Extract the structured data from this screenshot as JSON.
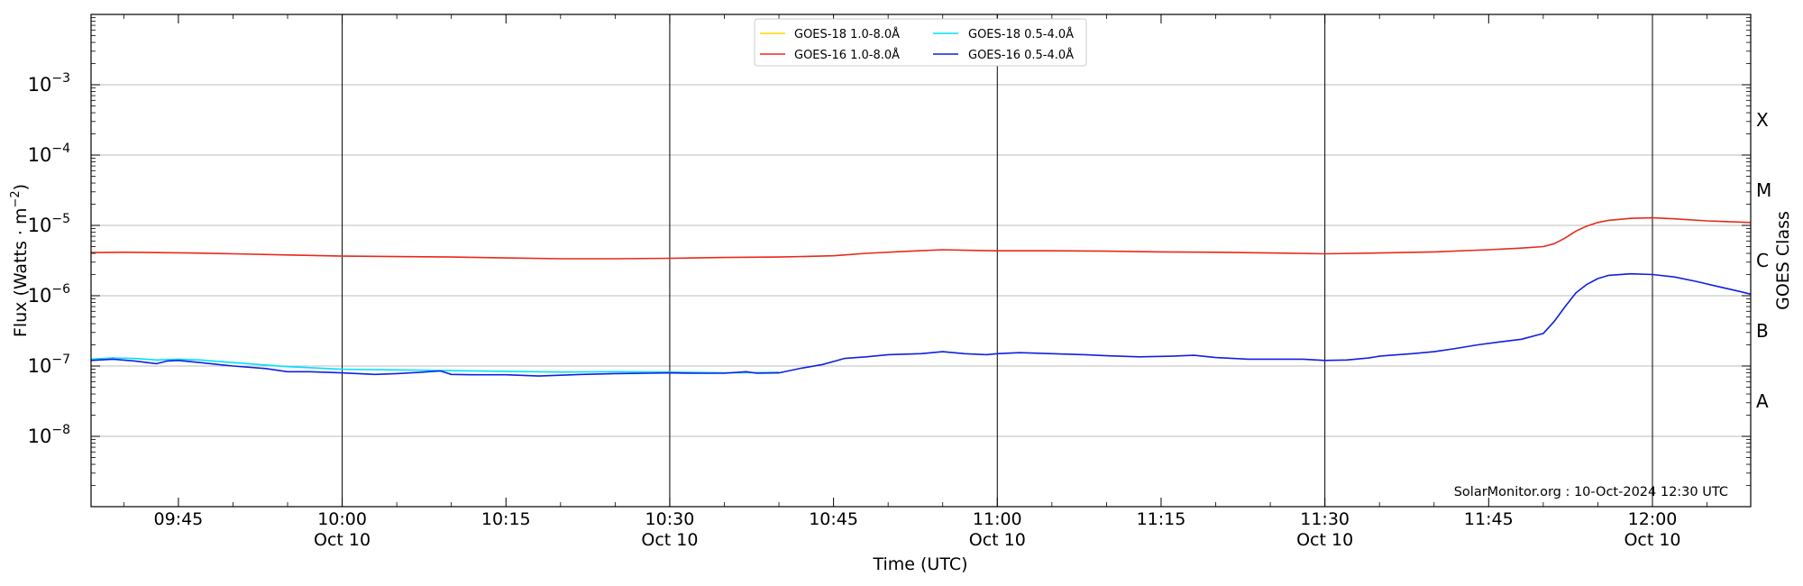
{
  "chart_data": {
    "type": "line",
    "ylabel": "Flux (Watts · m",
    "ylabel_exp": "−2",
    "ylabel_close": ")",
    "xlabel": "Time (UTC)",
    "right_label": "GOES Class",
    "scale_y": "log",
    "ylim": [
      1e-09,
      0.01
    ],
    "xlim": [
      "09:37",
      "12:09"
    ],
    "grid": "horizontal major ticks; vertical at half-hours",
    "legend_position": "top-center",
    "y_ticks": [
      {
        "base": "10",
        "exp": "−8",
        "value": 1e-08
      },
      {
        "base": "10",
        "exp": "−7",
        "value": 1e-07
      },
      {
        "base": "10",
        "exp": "−6",
        "value": 1e-06
      },
      {
        "base": "10",
        "exp": "−5",
        "value": 1e-05
      },
      {
        "base": "10",
        "exp": "−4",
        "value": 0.0001
      },
      {
        "base": "10",
        "exp": "−3",
        "value": 0.001
      }
    ],
    "x_ticks": [
      {
        "label": "09:45",
        "sub": "",
        "time": "09:45"
      },
      {
        "label": "10:00",
        "sub": "Oct 10",
        "time": "10:00"
      },
      {
        "label": "10:15",
        "sub": "",
        "time": "10:15"
      },
      {
        "label": "10:30",
        "sub": "Oct 10",
        "time": "10:30"
      },
      {
        "label": "10:45",
        "sub": "",
        "time": "10:45"
      },
      {
        "label": "11:00",
        "sub": "Oct 10",
        "time": "11:00"
      },
      {
        "label": "11:15",
        "sub": "",
        "time": "11:15"
      },
      {
        "label": "11:30",
        "sub": "Oct 10",
        "time": "11:30"
      },
      {
        "label": "11:45",
        "sub": "",
        "time": "11:45"
      },
      {
        "label": "12:00",
        "sub": "Oct 10",
        "time": "12:00"
      }
    ],
    "vlines": [
      "10:00",
      "10:30",
      "11:00",
      "11:30",
      "12:00"
    ],
    "goes_classes": [
      {
        "label": "A",
        "value": 3.16e-08
      },
      {
        "label": "B",
        "value": 3.16e-07
      },
      {
        "label": "C",
        "value": 3.16e-06
      },
      {
        "label": "M",
        "value": 3.16e-05
      },
      {
        "label": "X",
        "value": 0.000316
      }
    ],
    "annotation": "SolarMonitor.org : 10-Oct-2024 12:30 UTC",
    "series": [
      {
        "name": "GOES-18 1.0-8.0Å",
        "color": "#ffd700",
        "x": [],
        "values": []
      },
      {
        "name": "GOES-16 1.0-8.0Å",
        "color": "#e8291c",
        "x": [
          "09:37",
          "09:40",
          "09:43",
          "09:46",
          "09:50",
          "09:55",
          "10:00",
          "10:05",
          "10:10",
          "10:15",
          "10:20",
          "10:25",
          "10:30",
          "10:35",
          "10:40",
          "10:45",
          "10:48",
          "10:52",
          "10:55",
          "10:58",
          "11:00",
          "11:05",
          "11:10",
          "11:15",
          "11:20",
          "11:25",
          "11:30",
          "11:35",
          "11:40",
          "11:45",
          "11:48",
          "11:50",
          "11:51",
          "11:52",
          "11:53",
          "11:54",
          "11:55",
          "11:56",
          "11:58",
          "12:00",
          "12:02",
          "12:05",
          "12:09"
        ],
        "values": [
          4.1e-06,
          4.15e-06,
          4.1e-06,
          4.05e-06,
          3.95e-06,
          3.8e-06,
          3.65e-06,
          3.6e-06,
          3.55e-06,
          3.45e-06,
          3.35e-06,
          3.35e-06,
          3.4e-06,
          3.5e-06,
          3.55e-06,
          3.7e-06,
          4e-06,
          4.3e-06,
          4.5e-06,
          4.4e-06,
          4.35e-06,
          4.35e-06,
          4.3e-06,
          4.2e-06,
          4.15e-06,
          4.05e-06,
          3.95e-06,
          4.05e-06,
          4.2e-06,
          4.5e-06,
          4.75e-06,
          5e-06,
          5.5e-06,
          6.6e-06,
          8.3e-06,
          9.8e-06,
          1.1e-05,
          1.18e-05,
          1.26e-05,
          1.28e-05,
          1.24e-05,
          1.16e-05,
          1.1e-05
        ]
      },
      {
        "name": "GOES-18 0.5-4.0Å",
        "color": "#00e0ff",
        "x": [
          "09:37",
          "09:39",
          "09:41",
          "09:43",
          "09:45",
          "09:47",
          "09:50",
          "09:55",
          "10:00",
          "10:05",
          "10:10",
          "10:15",
          "10:20",
          "10:25",
          "10:30",
          "10:35",
          "10:40"
        ],
        "values": [
          1.25e-07,
          1.3e-07,
          1.28e-07,
          1.22e-07,
          1.25e-07,
          1.22e-07,
          1.12e-07,
          9.8e-08,
          9e-08,
          8.8e-08,
          8.6e-08,
          8.4e-08,
          8.2e-08,
          8.3e-08,
          8.2e-08,
          8e-08,
          8.1e-08
        ]
      },
      {
        "name": "GOES-16 0.5-4.0Å",
        "color": "#1020e0",
        "x": [
          "09:37",
          "09:39",
          "09:41",
          "09:43",
          "09:44",
          "09:45",
          "09:47",
          "09:50",
          "09:53",
          "09:55",
          "09:57",
          "10:00",
          "10:03",
          "10:05",
          "10:07",
          "10:09",
          "10:10",
          "10:12",
          "10:15",
          "10:18",
          "10:20",
          "10:22",
          "10:25",
          "10:28",
          "10:30",
          "10:32",
          "10:35",
          "10:37",
          "10:38",
          "10:40",
          "10:42",
          "10:44",
          "10:46",
          "10:48",
          "10:50",
          "10:53",
          "10:55",
          "10:57",
          "10:59",
          "11:00",
          "11:02",
          "11:05",
          "11:08",
          "11:10",
          "11:13",
          "11:16",
          "11:18",
          "11:20",
          "11:23",
          "11:26",
          "11:28",
          "11:30",
          "11:32",
          "11:34",
          "11:35",
          "11:36",
          "11:38",
          "11:40",
          "11:42",
          "11:44",
          "11:46",
          "11:48",
          "11:50",
          "11:51",
          "11:52",
          "11:53",
          "11:54",
          "11:55",
          "11:56",
          "11:58",
          "12:00",
          "12:02",
          "12:04",
          "12:06",
          "12:08",
          "12:09"
        ],
        "values": [
          1.2e-07,
          1.25e-07,
          1.18e-07,
          1.08e-07,
          1.18e-07,
          1.2e-07,
          1.12e-07,
          1e-07,
          9.2e-08,
          8.3e-08,
          8.3e-08,
          8e-08,
          7.6e-08,
          7.8e-08,
          8.1e-08,
          8.5e-08,
          7.6e-08,
          7.5e-08,
          7.5e-08,
          7.2e-08,
          7.4e-08,
          7.6e-08,
          7.8e-08,
          7.9e-08,
          8e-08,
          7.9e-08,
          7.9e-08,
          8.3e-08,
          7.9e-08,
          8e-08,
          9.3e-08,
          1.05e-07,
          1.28e-07,
          1.35e-07,
          1.45e-07,
          1.5e-07,
          1.6e-07,
          1.5e-07,
          1.45e-07,
          1.5e-07,
          1.55e-07,
          1.5e-07,
          1.45e-07,
          1.4e-07,
          1.35e-07,
          1.38e-07,
          1.42e-07,
          1.32e-07,
          1.25e-07,
          1.25e-07,
          1.25e-07,
          1.2e-07,
          1.22e-07,
          1.3e-07,
          1.38e-07,
          1.42e-07,
          1.5e-07,
          1.6e-07,
          1.78e-07,
          2e-07,
          2.2e-07,
          2.4e-07,
          2.9e-07,
          4.3e-07,
          7e-07,
          1.1e-06,
          1.45e-06,
          1.75e-06,
          1.95e-06,
          2.05e-06,
          2e-06,
          1.85e-06,
          1.6e-06,
          1.35e-06,
          1.15e-06,
          1.05e-06
        ]
      }
    ]
  }
}
